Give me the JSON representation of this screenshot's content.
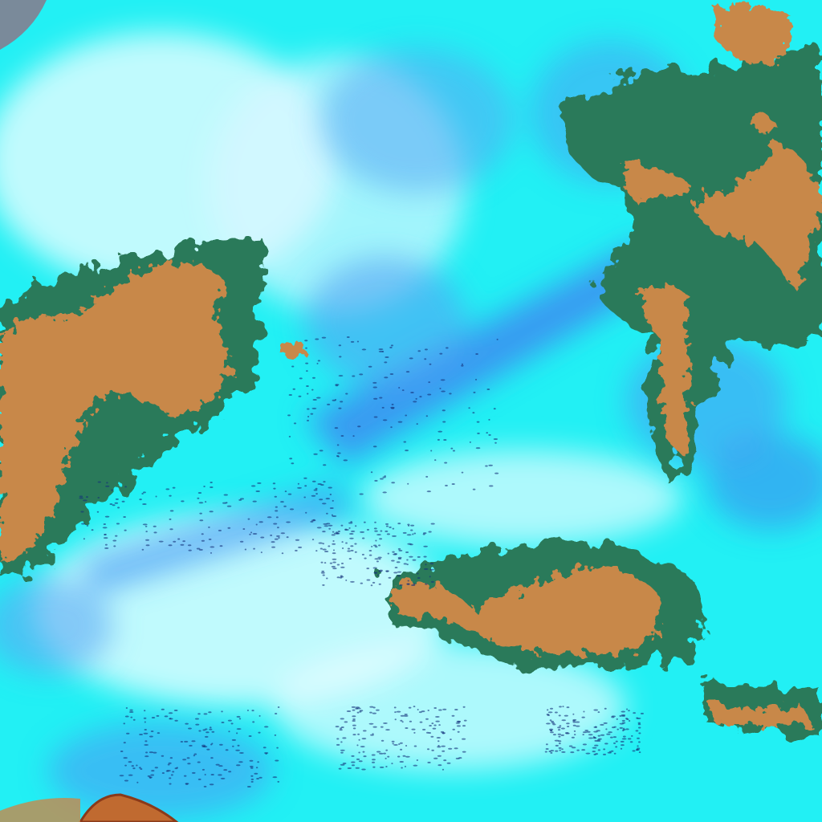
{
  "image": {
    "kind": "false-color satellite cloud imagery",
    "colors": {
      "thin_cloud_cyan": "#22f0f4",
      "bright_cloud_white": "#e8fcff",
      "clear_sky_blue": "#3c8cf0",
      "deep_blue": "#2a5ee0",
      "high_cloud_orange": "#c8884a",
      "cloud_edge_green": "#2c7a5a",
      "dark_speckle": "#14307a",
      "land_gray": "#7a8a9a"
    }
  }
}
